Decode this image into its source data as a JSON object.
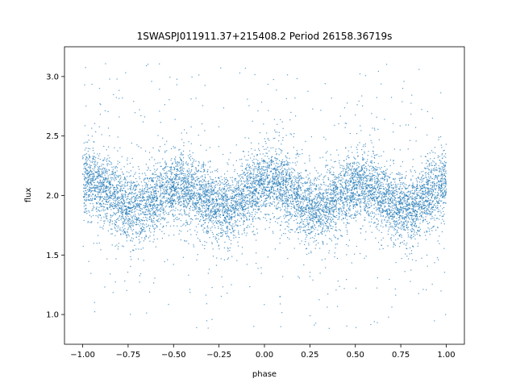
{
  "chart_data": {
    "type": "scatter",
    "title": "1SWASPJ011911.37+215408.2 Period 26158.36719s",
    "xlabel": "phase",
    "ylabel": "flux",
    "xlim": [
      -1.1,
      1.1
    ],
    "ylim": [
      0.75,
      3.25
    ],
    "x_ticks": [
      -1.0,
      -0.75,
      -0.5,
      -0.25,
      0.0,
      0.25,
      0.5,
      0.75,
      1.0
    ],
    "x_tick_labels": [
      "−1.00",
      "−0.75",
      "−0.50",
      "−0.25",
      "0.00",
      "0.25",
      "0.50",
      "0.75",
      "1.00"
    ],
    "y_ticks": [
      1.0,
      1.5,
      2.0,
      2.5,
      3.0
    ],
    "y_tick_labels": [
      "1.0",
      "1.5",
      "2.0",
      "2.5",
      "3.0"
    ],
    "grid": false,
    "legend": "none",
    "point_color": "#1f77b4",
    "series": [
      {
        "model": "flux = 2.0 + 0.1*cos(4*pi*(phase - 0.03)) + 0.02*cos(2*pi*(phase - 0.03)); scatter sd ~0.17 plus sparse outliers spanning 0.88–3.15",
        "phase_range": [
          -1.0,
          1.0
        ],
        "maxima_phase": [
          -0.97,
          -0.47,
          0.03,
          0.53
        ],
        "minima_phase": [
          -0.72,
          -0.22,
          0.28,
          0.78
        ],
        "max_flux": 2.1,
        "min_flux": 1.9,
        "outlier_flux_range": [
          0.88,
          3.15
        ]
      }
    ]
  }
}
